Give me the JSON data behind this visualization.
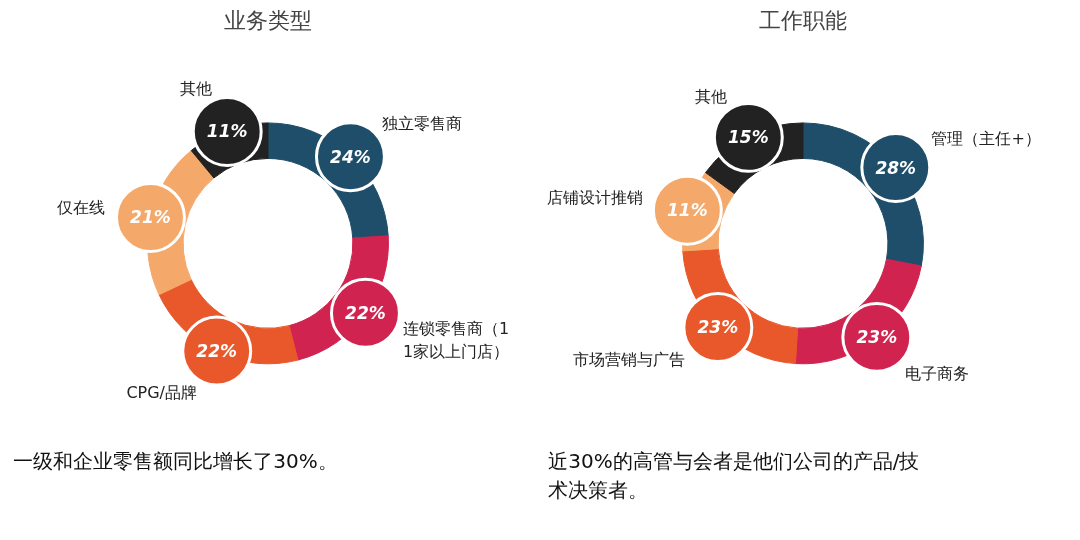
{
  "chart_data": [
    {
      "type": "donut",
      "title": "业务类型",
      "categories": [
        "独立零售商",
        "连锁零售商（11家以上门店）",
        "CPG/品牌",
        "仅在线",
        "其他"
      ],
      "values": [
        24,
        22,
        22,
        21,
        11
      ],
      "colors": [
        "#1f4e6b",
        "#d0234f",
        "#e9582a",
        "#f4a86a",
        "#222222"
      ],
      "value_labels": [
        "24%",
        "22%",
        "22%",
        "21%",
        "11%"
      ],
      "annotations": [
        "一级和企业零售额同比增长了30%。"
      ]
    },
    {
      "type": "donut",
      "title": "工作职能",
      "categories": [
        "管理（主任+）",
        "电子商务",
        "市场营销与广告",
        "店铺设计推销",
        "其他"
      ],
      "values": [
        28,
        23,
        23,
        11,
        15
      ],
      "colors": [
        "#1f4e6b",
        "#d0234f",
        "#e9582a",
        "#f4a86a",
        "#222222"
      ],
      "value_labels": [
        "28%",
        "23%",
        "23%",
        "11%",
        "15%"
      ],
      "annotations": [
        "近30%的高管与会者是他们公司的产品/技术决策者。"
      ]
    }
  ]
}
